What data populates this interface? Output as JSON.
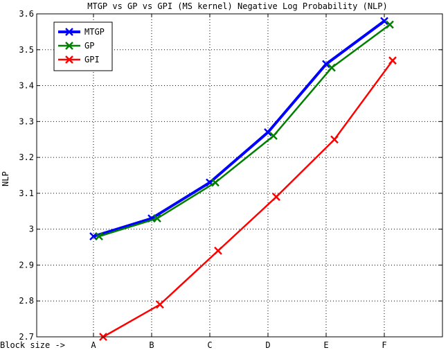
{
  "chart_data": {
    "type": "line",
    "title": "MTGP vs GP vs GPI (MS kernel) Negative Log Probability (NLP)",
    "xlabel": "Block size ->",
    "ylabel": "NLP",
    "categories": [
      "A",
      "B",
      "C",
      "D",
      "E",
      "F"
    ],
    "ylim": [
      2.7,
      3.6
    ],
    "yticks": [
      "2.7",
      "2.8",
      "2.9",
      "3",
      "3.1",
      "3.2",
      "3.3",
      "3.4",
      "3.5",
      "3.6"
    ],
    "grid": true,
    "legend": "top-left",
    "series": [
      {
        "name": "MTGP",
        "color": "#0000ff",
        "values": [
          2.98,
          3.03,
          3.13,
          3.27,
          3.46,
          3.58
        ]
      },
      {
        "name": "GP",
        "color": "#007f00",
        "values": [
          2.98,
          3.03,
          3.13,
          3.26,
          3.45,
          3.57
        ]
      },
      {
        "name": "GPI",
        "color": "#ff0000",
        "values": [
          2.7,
          2.79,
          2.94,
          3.09,
          3.25,
          3.47
        ]
      }
    ]
  }
}
